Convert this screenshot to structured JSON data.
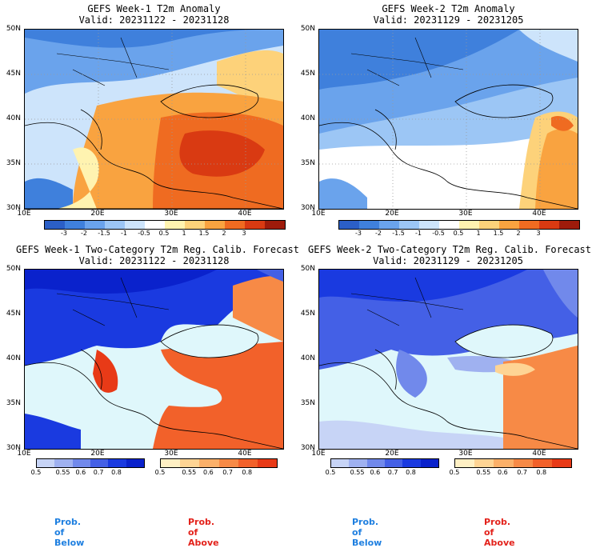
{
  "panels": [
    {
      "title": "GEFS Week-1 T2m Anomaly",
      "valid": "Valid: 20231122 - 20231128"
    },
    {
      "title": "GEFS Week-2 T2m Anomaly",
      "valid": "Valid: 20231129 - 20231205"
    },
    {
      "title": "GEFS Week-1 Two-Category T2m Reg. Calib. Forecast",
      "valid": "Valid: 20231122 - 20231128"
    },
    {
      "title": "GEFS Week-2 Two-Category T2m Reg. Calib. Forecast",
      "valid": "Valid: 20231129 - 20231205"
    }
  ],
  "lat_ticks": [
    "50N",
    "45N",
    "40N",
    "35N",
    "30N"
  ],
  "lon_ticks": [
    "10E",
    "20E",
    "30E",
    "40E"
  ],
  "anomaly_colorbar": {
    "labels": [
      "-3",
      "-2",
      "-1.5",
      "-1",
      "-0.5",
      "0.5",
      "1",
      "1.5",
      "2",
      "3"
    ],
    "colors": [
      "#2b5fc7",
      "#3f80dc",
      "#6aa3ec",
      "#9cc6f5",
      "#cde4fb",
      "#ffffff",
      "#fff3b0",
      "#fdd27a",
      "#f9a340",
      "#ef6b21",
      "#d93a12",
      "#9e1b0b"
    ]
  },
  "prob_below": {
    "labels": [
      "0.5",
      "0.55",
      "0.6",
      "0.7",
      "0.8"
    ],
    "colors": [
      "#c7d4f6",
      "#9fb1f0",
      "#7189eb",
      "#4460e6",
      "#1a3ae0",
      "#0a22cc"
    ]
  },
  "prob_above": {
    "labels": [
      "0.5",
      "0.55",
      "0.6",
      "0.7",
      "0.8"
    ],
    "colors": [
      "#fff0c4",
      "#fed494",
      "#fbb069",
      "#f78a46",
      "#f2612a",
      "#e83a17"
    ]
  },
  "legend_text": {
    "below": "Prob. of Below",
    "above": "Prob. of Above"
  },
  "colors": {
    "sea_prob": "#dff7fb",
    "grid": "#9a9a9a",
    "coast": "#000000"
  }
}
